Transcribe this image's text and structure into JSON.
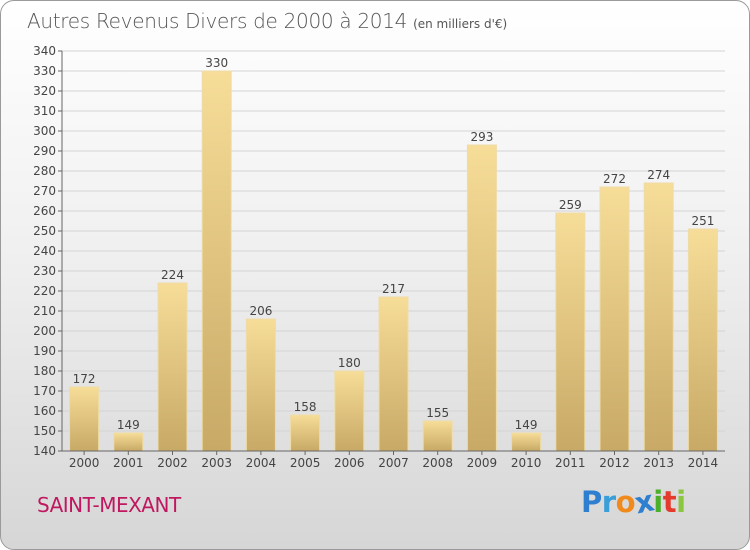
{
  "header": {
    "title": "Autres Revenus Divers de 2000 à 2014",
    "unit_note": "(en milliers d'€)"
  },
  "footer": {
    "location": "SAINT-MEXANT",
    "logo": {
      "text": "Proxiti",
      "letter_colors": [
        "#2e7fd0",
        "#3a9ed8",
        "#f08a1c",
        "#2e7fd0",
        "#4caf2a",
        "#e53b2d",
        "#8cc63f"
      ]
    }
  },
  "colors": {
    "bar_top": "#f6dd98",
    "bar_bottom": "#c8a966",
    "gridline": "#d4d4d4",
    "axis_text": "#444444"
  },
  "chart_data": {
    "type": "bar",
    "title": "Autres Revenus Divers de 2000 à 2014",
    "subtitle": "(en milliers d'€)",
    "categories": [
      "2000",
      "2001",
      "2002",
      "2003",
      "2004",
      "2005",
      "2006",
      "2007",
      "2008",
      "2009",
      "2010",
      "2011",
      "2012",
      "2013",
      "2014"
    ],
    "values": [
      172,
      149,
      224,
      330,
      206,
      158,
      180,
      217,
      155,
      293,
      149,
      259,
      272,
      274,
      251
    ],
    "ylim": [
      140,
      340
    ],
    "ytick_step": 10,
    "grid": true,
    "data_labels": true,
    "legend": "none"
  }
}
